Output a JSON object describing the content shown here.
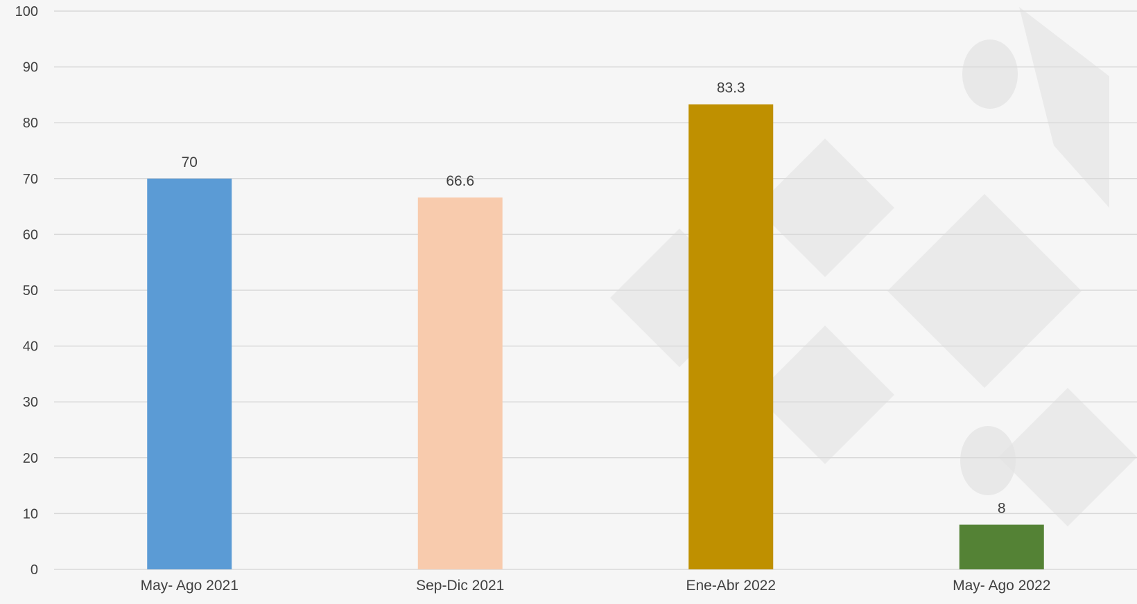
{
  "chart_data": {
    "type": "bar",
    "title": "",
    "xlabel": "",
    "ylabel": "",
    "categories": [
      "May- Ago 2021",
      "Sep-Dic 2021",
      "Ene-Abr 2022",
      "May- Ago 2022"
    ],
    "values": [
      70,
      66.6,
      83.3,
      8
    ],
    "value_labels": [
      "70",
      "66.6",
      "83.3",
      "8"
    ],
    "bar_colors": [
      "#5b9bd5",
      "#f8cbad",
      "#bf9000",
      "#548235"
    ],
    "ylim": [
      0,
      100
    ],
    "yticks": [
      0,
      10,
      20,
      30,
      40,
      50,
      60,
      70,
      80,
      90,
      100
    ],
    "grid": true,
    "legend": "none"
  },
  "colors": {
    "background": "#f6f6f6",
    "gridline": "#d9d9d9",
    "text": "#404040",
    "watermark": "#e2e2e2"
  }
}
